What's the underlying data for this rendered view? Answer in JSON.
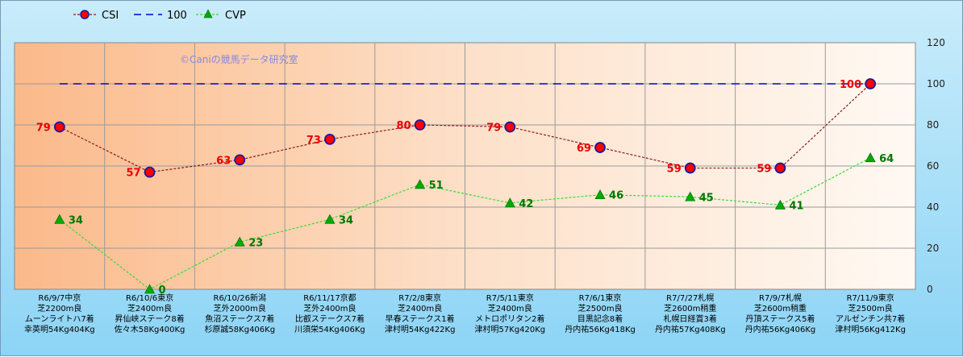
{
  "watermark": "©Caniの競馬データ研究室",
  "chart_data": {
    "type": "line",
    "ylim": [
      0,
      120
    ],
    "yticks": [
      0,
      20,
      40,
      60,
      80,
      100,
      120
    ],
    "grid": true,
    "legend_position": "top-left",
    "categories": [
      [
        "R6/9/7中京",
        "芝2200m良",
        "ムーンライトハ7着",
        "幸英明54Kg404Kg"
      ],
      [
        "R6/10/6東京",
        "芝2400m良",
        "昇仙峡ステーク8着",
        "佐々木58Kg400Kg"
      ],
      [
        "R6/10/26新潟",
        "芝外2000m良",
        "魚沼ステークス7着",
        "杉原誠58Kg406Kg"
      ],
      [
        "R6/11/17京都",
        "芝外2400m良",
        "比叡ステークス7着",
        "川須栄54Kg406Kg"
      ],
      [
        "R7/2/8東京",
        "芝2400m良",
        "早春ステークス1着",
        "津村明54Kg422Kg"
      ],
      [
        "R7/5/11東京",
        "芝2400m良",
        "メトロポリタン2着",
        "津村明57Kg420Kg"
      ],
      [
        "R7/6/1東京",
        "芝2500m良",
        "目黒記念8着",
        "丹内祐56Kg418Kg"
      ],
      [
        "R7/7/27札幌",
        "芝2600m稍重",
        "札幌日経賞3着",
        "丹内祐57Kg408Kg"
      ],
      [
        "R7/9/7札幌",
        "芝2600m稍重",
        "丹頂ステークス5着",
        "丹内祐56Kg406Kg"
      ],
      [
        "R7/11/9東京",
        "芝2500m良",
        "アルゼンチン共7着",
        "津村明56Kg412Kg"
      ]
    ],
    "series": [
      {
        "name": "CSI",
        "values": [
          79,
          57,
          63,
          73,
          80,
          79,
          69,
          59,
          59,
          100
        ],
        "color": "#8b1a1a",
        "marker_color": "#ff0000",
        "label_color": "#ee0000"
      },
      {
        "name": "100",
        "values": [
          100,
          100,
          100,
          100,
          100,
          100,
          100,
          100,
          100,
          100
        ],
        "color": "#0000cc"
      },
      {
        "name": "CVP",
        "values": [
          34,
          0,
          23,
          34,
          51,
          42,
          46,
          45,
          41,
          64
        ],
        "color": "#33dd33",
        "marker_color": "#00aa00",
        "label_color": "#007700"
      }
    ]
  }
}
